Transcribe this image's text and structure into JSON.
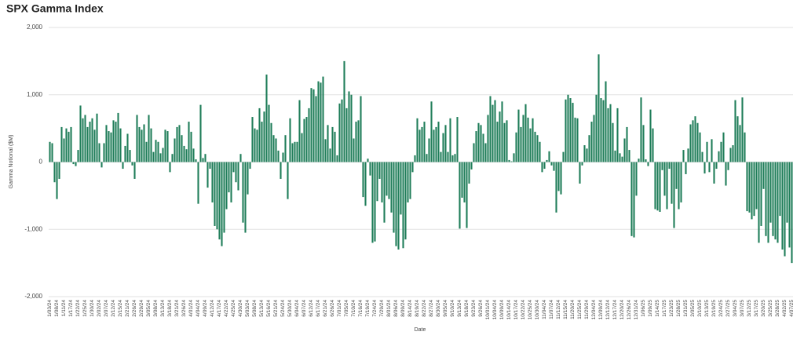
{
  "chart_data": {
    "type": "bar",
    "title": "SPX Gamma Index",
    "x_label": "Date",
    "y_label": "Gamma Notional ($M)",
    "color": "#1f7d59",
    "grid": true,
    "ylim": [
      -2000,
      2000
    ],
    "yticks": [
      {
        "value": -2000,
        "label": "-2,000"
      },
      {
        "value": -1000,
        "label": "-1,000"
      },
      0,
      {
        "value": 1000,
        "label": "1,000"
      },
      {
        "value": 2000,
        "label": "2,000"
      }
    ],
    "categories": [
      "1/03/24",
      null,
      null,
      "1/08/24",
      null,
      null,
      "1/11/24",
      null,
      null,
      "1/17/24",
      null,
      null,
      "1/22/24",
      null,
      null,
      "1/25/24",
      null,
      null,
      "1/30/24",
      null,
      null,
      "2/02/24",
      null,
      null,
      "2/07/24",
      null,
      null,
      "2/12/24",
      null,
      null,
      "2/15/24",
      null,
      null,
      "2/21/24",
      null,
      null,
      "2/26/24",
      null,
      null,
      "2/29/24",
      null,
      null,
      "3/05/24",
      null,
      null,
      "3/08/24",
      null,
      null,
      "3/13/24",
      null,
      null,
      "3/18/24",
      null,
      null,
      "3/21/24",
      null,
      null,
      "3/26/24",
      null,
      null,
      "4/01/24",
      null,
      null,
      "4/04/24",
      null,
      null,
      "4/09/24",
      null,
      null,
      "4/12/24",
      null,
      null,
      "4/17/24",
      null,
      null,
      "4/22/24",
      null,
      null,
      "4/25/24",
      null,
      null,
      "4/30/24",
      null,
      null,
      "5/03/24",
      null,
      null,
      "5/08/24",
      null,
      null,
      "5/13/24",
      null,
      null,
      "5/16/24",
      null,
      null,
      "5/21/24",
      null,
      null,
      "5/24/24",
      null,
      null,
      "5/30/24",
      null,
      null,
      "6/04/24",
      null,
      null,
      "6/07/24",
      null,
      null,
      "6/12/24",
      null,
      null,
      "6/17/24",
      null,
      null,
      "6/21/24",
      null,
      null,
      "6/26/24",
      null,
      null,
      "7/01/24",
      null,
      null,
      "7/05/24",
      null,
      null,
      "7/10/24",
      null,
      null,
      "7/16/24",
      null,
      null,
      "7/19/24",
      null,
      null,
      "7/24/24",
      null,
      null,
      "7/29/24",
      null,
      null,
      "8/01/24",
      null,
      null,
      "8/06/24",
      null,
      null,
      "8/09/24",
      null,
      null,
      "8/14/24",
      null,
      null,
      "8/19/24",
      null,
      null,
      "8/22/24",
      null,
      null,
      "8/27/24",
      null,
      null,
      "8/30/24",
      null,
      null,
      "9/05/24",
      null,
      null,
      "9/10/24",
      null,
      null,
      "9/13/24",
      null,
      null,
      "9/18/24",
      null,
      null,
      "9/23/24",
      null,
      null,
      "9/26/24",
      null,
      null,
      "10/01/24",
      null,
      null,
      "10/04/24",
      null,
      null,
      "10/09/24",
      null,
      null,
      "10/14/24",
      null,
      null,
      "10/17/24",
      null,
      null,
      "10/22/24",
      null,
      null,
      "10/25/24",
      null,
      null,
      "10/30/24",
      null,
      null,
      "11/04/24",
      null,
      null,
      "11/07/24",
      null,
      null,
      "11/12/24",
      null,
      null,
      "11/15/24",
      null,
      null,
      "11/20/24",
      null,
      null,
      "11/25/24",
      null,
      null,
      "11/29/24",
      null,
      null,
      "12/04/24",
      null,
      null,
      "12/09/24",
      null,
      null,
      "12/12/24",
      null,
      null,
      "12/17/24",
      null,
      null,
      "12/20/24",
      null,
      null,
      "12/26/24",
      null,
      null,
      "12/31/24",
      null,
      null,
      "1/06/25",
      null,
      null,
      "1/09/25",
      null,
      null,
      "1/14/25",
      null,
      null,
      "1/17/25",
      null,
      null,
      "1/23/25",
      null,
      null,
      "1/28/25",
      null,
      null,
      "1/31/25",
      null,
      null,
      "2/05/25",
      null,
      null,
      "2/10/25",
      null,
      null,
      "2/13/25",
      null,
      null,
      "2/19/25",
      null,
      null,
      "2/24/25",
      null,
      null,
      "2/27/25",
      null,
      null,
      "3/04/25",
      null,
      null,
      "3/07/25",
      null,
      null,
      "3/12/25",
      null,
      null,
      "3/17/25",
      null,
      null,
      "3/20/25",
      null,
      null,
      "3/25/25",
      null,
      null,
      "3/28/25",
      null,
      null,
      "4/02/25",
      null,
      null,
      "4/07/25"
    ],
    "values": [
      300,
      280,
      -300,
      -550,
      -250,
      520,
      350,
      500,
      450,
      520,
      -30,
      -60,
      180,
      840,
      650,
      700,
      520,
      600,
      650,
      480,
      720,
      280,
      -80,
      280,
      550,
      460,
      440,
      620,
      600,
      730,
      500,
      -100,
      240,
      420,
      180,
      -50,
      -250,
      700,
      520,
      480,
      560,
      300,
      700,
      500,
      150,
      330,
      300,
      130,
      210,
      480,
      460,
      -150,
      120,
      350,
      520,
      550,
      400,
      240,
      190,
      600,
      450,
      200,
      40,
      -620,
      850,
      60,
      120,
      -380,
      -100,
      -600,
      -950,
      -1000,
      -1150,
      -1250,
      -1050,
      -700,
      -450,
      -600,
      -150,
      -300,
      -420,
      120,
      -900,
      -1050,
      -480,
      -100,
      670,
      500,
      480,
      800,
      600,
      750,
      1300,
      850,
      580,
      400,
      350,
      170,
      -250,
      140,
      400,
      -550,
      650,
      280,
      300,
      300,
      920,
      430,
      640,
      670,
      800,
      1100,
      1080,
      980,
      1200,
      1180,
      1270,
      340,
      550,
      200,
      520,
      450,
      100,
      870,
      930,
      1500,
      800,
      1050,
      1000,
      350,
      600,
      620,
      980,
      -520,
      -650,
      50,
      -200,
      -1200,
      -1180,
      -580,
      -250,
      -600,
      -900,
      -500,
      -550,
      -750,
      -1050,
      -1250,
      -1300,
      -780,
      -1280,
      -1150,
      -600,
      -550,
      -150,
      100,
      650,
      480,
      520,
      600,
      120,
      350,
      900,
      480,
      520,
      600,
      150,
      430,
      550,
      150,
      650,
      100,
      120,
      670,
      -990,
      -530,
      -600,
      -980,
      -320,
      -110,
      280,
      460,
      580,
      550,
      420,
      280,
      700,
      980,
      850,
      920,
      600,
      750,
      900,
      580,
      620,
      30,
      10,
      130,
      440,
      780,
      520,
      700,
      860,
      660,
      500,
      650,
      450,
      400,
      300,
      -150,
      -100,
      30,
      160,
      -50,
      -130,
      -750,
      -430,
      -480,
      150,
      930,
      1000,
      950,
      880,
      660,
      650,
      -320,
      -50,
      250,
      200,
      400,
      600,
      700,
      1000,
      1600,
      950,
      920,
      1200,
      800,
      860,
      580,
      170,
      800,
      130,
      80,
      350,
      520,
      180,
      -1100,
      -1120,
      -500,
      50,
      960,
      550,
      40,
      -60,
      780,
      500,
      -700,
      -720,
      -740,
      -120,
      -500,
      -700,
      -100,
      -620,
      -980,
      -400,
      -700,
      -600,
      180,
      -180,
      200,
      560,
      620,
      680,
      580,
      440,
      150,
      -170,
      300,
      -150,
      340,
      -320,
      -100,
      160,
      300,
      440,
      -350,
      -120,
      210,
      250,
      920,
      680,
      550,
      960,
      440,
      -730,
      -750,
      -850,
      -800,
      -700,
      -1200,
      -950,
      -400,
      -1100,
      -1200,
      -900,
      -1100,
      -1150,
      -1200,
      -800,
      -1300,
      -1400,
      -900,
      -1270,
      -1500
    ]
  }
}
